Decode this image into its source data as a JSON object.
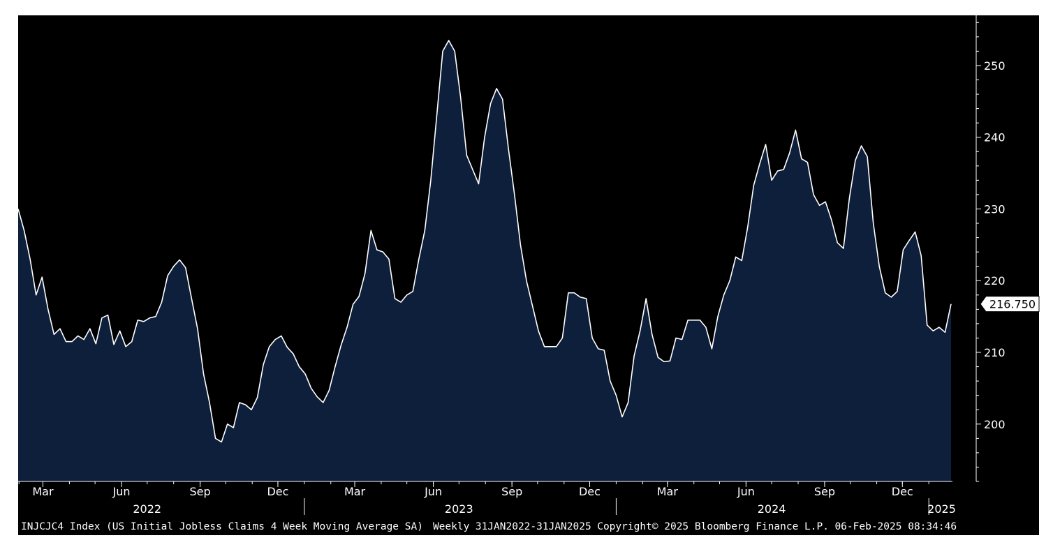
{
  "chart_data": {
    "type": "area",
    "ticker": "INJCJC4 Index",
    "description": "(US Initial Jobless Claims 4 Week Moving Average SA)",
    "frequency": "Weekly",
    "date_range": "31JAN2022-31JAN2025",
    "copyright": "Copyright© 2025 Bloomberg Finance L.P.",
    "timestamp": "06-Feb-2025 08:34:46",
    "last_value_label": "216.750",
    "x_start": "2022-01-31",
    "x_step_days": 7,
    "y_ticks": [
      200,
      210,
      220,
      230,
      240,
      250
    ],
    "ylim": [
      192,
      257
    ],
    "month_ticks": [
      {
        "date": "2022-03-01",
        "label": "Mar"
      },
      {
        "date": "2022-06-01",
        "label": "Jun"
      },
      {
        "date": "2022-09-01",
        "label": "Sep"
      },
      {
        "date": "2022-12-01",
        "label": "Dec"
      },
      {
        "date": "2023-03-01",
        "label": "Mar"
      },
      {
        "date": "2023-06-01",
        "label": "Jun"
      },
      {
        "date": "2023-09-01",
        "label": "Sep"
      },
      {
        "date": "2023-12-01",
        "label": "Dec"
      },
      {
        "date": "2024-03-01",
        "label": "Mar"
      },
      {
        "date": "2024-06-01",
        "label": "Jun"
      },
      {
        "date": "2024-09-01",
        "label": "Sep"
      },
      {
        "date": "2024-12-01",
        "label": "Dec"
      }
    ],
    "year_labels": [
      {
        "label": "2022",
        "center": "2022-07-01"
      },
      {
        "label": "2023",
        "center": "2023-07-01"
      },
      {
        "label": "2024",
        "center": "2024-07-01"
      },
      {
        "label": "2025",
        "center": "2025-01-16"
      }
    ],
    "year_separators": [
      "2023-01-01",
      "2024-01-01",
      "2025-01-01"
    ],
    "series": [
      {
        "values": [
          230.0,
          227.0,
          223.0,
          218.0,
          220.5,
          216.0,
          212.5,
          213.3,
          211.5,
          211.5,
          212.3,
          211.8,
          213.3,
          211.2,
          214.8,
          215.2,
          211.1,
          213.0,
          210.8,
          211.5,
          214.5,
          214.3,
          214.8,
          215.0,
          217.0,
          220.7,
          222.0,
          222.9,
          221.8,
          217.5,
          213.3,
          207.0,
          203.0,
          198.0,
          197.5,
          200.0,
          199.5,
          203.0,
          202.7,
          202.0,
          203.7,
          208.3,
          210.8,
          211.8,
          212.3,
          210.7,
          209.8,
          208.0,
          207.0,
          205.0,
          203.8,
          203.0,
          204.7,
          208.0,
          211.0,
          213.5,
          216.7,
          217.8,
          221.0,
          227.0,
          224.3,
          224.0,
          223.0,
          217.5,
          217.0,
          218.0,
          218.5,
          223.0,
          227.0,
          234.0,
          243.0,
          252.0,
          253.5,
          252.0,
          245.5,
          237.5,
          235.5,
          233.5,
          240.0,
          244.7,
          246.8,
          245.3,
          238.3,
          232.0,
          225.0,
          220.0,
          216.5,
          213.0,
          210.8,
          210.8,
          210.8,
          212.0,
          218.3,
          218.3,
          217.7,
          217.5,
          212.0,
          210.5,
          210.3,
          206.0,
          204.0,
          201.0,
          203.0,
          209.5,
          213.0,
          217.5,
          212.5,
          209.3,
          208.7,
          208.8,
          212.0,
          211.8,
          214.5,
          214.5,
          214.5,
          213.5,
          210.5,
          215.0,
          218.0,
          220.0,
          223.3,
          222.8,
          227.5,
          233.3,
          236.3,
          239.0,
          234.0,
          235.3,
          235.5,
          237.8,
          241.0,
          237.0,
          236.5,
          232.0,
          230.5,
          231.0,
          228.5,
          225.3,
          224.5,
          231.5,
          236.8,
          238.8,
          237.3,
          228.0,
          222.0,
          218.3,
          217.7,
          218.5,
          224.3,
          225.6,
          226.8,
          223.5,
          213.8,
          213.0,
          213.5,
          212.8,
          216.75
        ]
      }
    ]
  }
}
